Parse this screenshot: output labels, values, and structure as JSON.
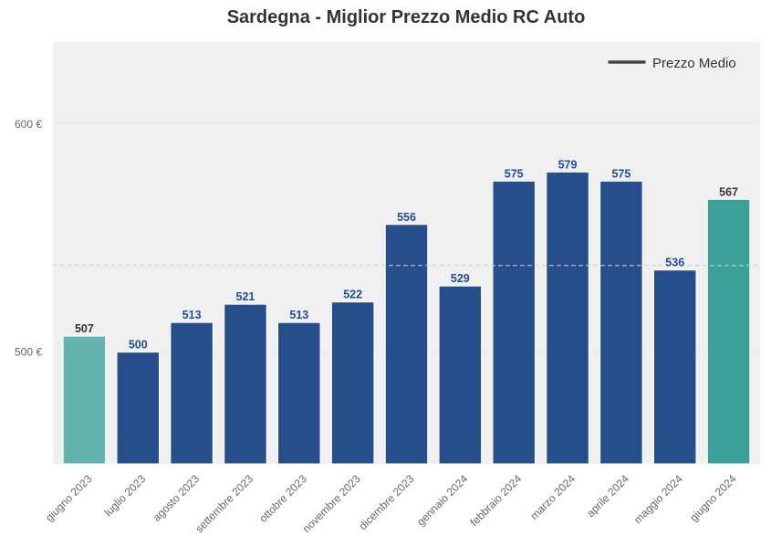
{
  "chart_data": {
    "type": "bar",
    "title": "Sardegna - Miglior Prezzo Medio RC Auto",
    "xlabel": "",
    "ylabel": "",
    "categories": [
      "giugno 2023",
      "luglio 2023",
      "agosto 2023",
      "settembre 2023",
      "ottobre 2023",
      "novembre 2023",
      "dicembre 2023",
      "gennaio 2024",
      "febbraio 2024",
      "marzo 2024",
      "aprile 2024",
      "maggio 2024",
      "giugno 2024"
    ],
    "values": [
      507,
      500,
      513,
      521,
      513,
      522,
      556,
      529,
      575,
      579,
      575,
      536,
      567
    ],
    "bar_colors": [
      "#64b3ad",
      "#264e8a",
      "#264e8a",
      "#264e8a",
      "#264e8a",
      "#264e8a",
      "#264e8a",
      "#264e8a",
      "#264e8a",
      "#264e8a",
      "#264e8a",
      "#264e8a",
      "#3ba098"
    ],
    "label_colors": [
      "#333333",
      "#1f4e93",
      "#1f4e93",
      "#1f4e93",
      "#1f4e93",
      "#1f4e93",
      "#1f4e93",
      "#1f4e93",
      "#1f4e93",
      "#1f4e93",
      "#1f4e93",
      "#1f4e93",
      "#333333"
    ],
    "ylim": [
      451,
      636
    ],
    "yticks": [
      500,
      600
    ],
    "ytick_labels": [
      "500 €",
      "600 €"
    ],
    "reference_line": {
      "value": 538,
      "style": "dashed",
      "color": "#c8c8c8"
    },
    "legend": {
      "label": "Prezzo Medio",
      "position": "top-right",
      "line_color": "#444444"
    },
    "grid": true,
    "background": "#f0f0f0"
  }
}
